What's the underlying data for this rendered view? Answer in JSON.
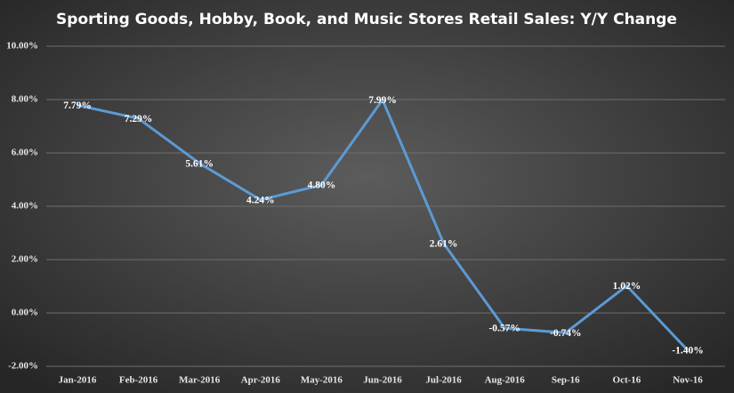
{
  "chart_data": {
    "type": "line",
    "title": "Sporting Goods, Hobby, Book, and Music Stores Retail Sales: Y/Y Change",
    "categories": [
      "Jan-2016",
      "Feb-2016",
      "Mar-2016",
      "Apr-2016",
      "May-2016",
      "Jun-2016",
      "Jul-2016",
      "Aug-2016",
      "Sep-16",
      "Oct-16",
      "Nov-16"
    ],
    "series": [
      {
        "color": "#5b9bd5",
        "values": [
          7.79,
          7.29,
          5.61,
          4.24,
          4.8,
          7.99,
          2.61,
          -0.57,
          -0.74,
          1.02,
          -1.4
        ],
        "value_labels": [
          "7.79%",
          "7.29%",
          "5.61%",
          "4.24%",
          "4.80%",
          "7.99%",
          "2.61%",
          "-0.57%",
          "-0.74%",
          "1.02%",
          "-1.40%"
        ]
      }
    ],
    "ylim": [
      -2,
      10
    ],
    "yticks": [
      {
        "value": -2,
        "label": "-2.00%"
      },
      {
        "value": 0,
        "label": "0.00%"
      },
      {
        "value": 2,
        "label": "2.00%"
      },
      {
        "value": 4,
        "label": "4.00%"
      },
      {
        "value": 6,
        "label": "6.00%"
      },
      {
        "value": 8,
        "label": "8.00%"
      },
      {
        "value": 10,
        "label": "10.00%"
      }
    ],
    "grid": true
  }
}
